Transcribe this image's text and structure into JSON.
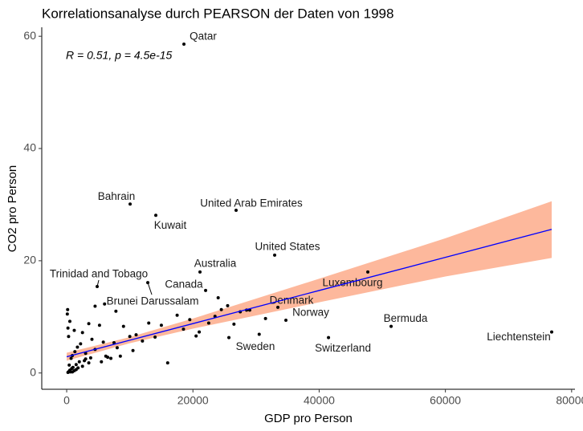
{
  "chart_data": {
    "type": "scatter",
    "title": "Korrelationsanalyse durch PEARSON der Daten von 1998",
    "annotation": "R = 0.51, p = 4.5e-15",
    "x_label": "GDP pro Person",
    "y_label": "CO2 pro Person",
    "xlim": [
      -3950,
      80530
    ],
    "ylim": [
      -2.9,
      61.6
    ],
    "xticks": [
      0,
      20000,
      40000,
      60000,
      80000
    ],
    "yticks": [
      0,
      20,
      40,
      60
    ],
    "point_color": "#000000",
    "labeled": [
      {
        "name": "Qatar",
        "x": 18575,
        "y": 58.6
      },
      {
        "name": "Bahrain",
        "x": 10050,
        "y": 30.1
      },
      {
        "name": "Kuwait",
        "x": 14120,
        "y": 28.1
      },
      {
        "name": "United Arab Emirates",
        "x": 26840,
        "y": 29.0
      },
      {
        "name": "United States",
        "x": 32950,
        "y": 21.0
      },
      {
        "name": "Australia",
        "x": 21120,
        "y": 18.0
      },
      {
        "name": "Trinidad and Tobago",
        "x": 4830,
        "y": 15.4
      },
      {
        "name": "Brunei Darussalam",
        "x": 12850,
        "y": 16.1
      },
      {
        "name": "Canada",
        "x": 22010,
        "y": 14.7
      },
      {
        "name": "Luxembourg",
        "x": 47710,
        "y": 18.0
      },
      {
        "name": "Denmark",
        "x": 33460,
        "y": 11.7
      },
      {
        "name": "Norway",
        "x": 34730,
        "y": 9.4
      },
      {
        "name": "Sweden",
        "x": 25700,
        "y": 6.3
      },
      {
        "name": "Switzerland",
        "x": 41480,
        "y": 6.3
      },
      {
        "name": "Bermuda",
        "x": 51400,
        "y": 8.3
      },
      {
        "name": "Liechtenstein",
        "x": 76840,
        "y": 7.3
      }
    ],
    "points": {
      "x": [
        200,
        300,
        400,
        500,
        600,
        800,
        1000,
        1200,
        1500,
        1800,
        2000,
        2500,
        3000,
        3500,
        400,
        700,
        900,
        1300,
        1700,
        2200,
        300,
        200,
        100,
        150,
        500,
        1200,
        2500,
        3500,
        4000,
        4500,
        5200,
        5800,
        6200,
        7000,
        7500,
        8000,
        8500,
        9000,
        10000,
        10500,
        11000,
        12000,
        13000,
        14000,
        15000,
        16000,
        4500,
        6000,
        7800,
        19500,
        20500,
        21000,
        22500,
        23500,
        24500,
        25500,
        26500,
        27500,
        28500,
        30500,
        31500,
        24000,
        29000,
        18500,
        17500,
        3000,
        5500,
        2800,
        1500,
        900,
        6500,
        3800
      ],
      "y": [
        0.1,
        0.2,
        0.3,
        0.5,
        0.2,
        0.8,
        1.0,
        0.4,
        1.5,
        0.9,
        2.0,
        1.2,
        2.5,
        1.8,
        1.4,
        2.6,
        3.1,
        3.8,
        4.6,
        5.2,
        6.5,
        8.0,
        10.5,
        11.3,
        9.2,
        7.6,
        7.2,
        8.8,
        6.0,
        4.2,
        8.5,
        5.5,
        3.0,
        2.6,
        5.4,
        4.5,
        3.0,
        8.3,
        6.5,
        4.0,
        6.8,
        5.7,
        8.9,
        6.4,
        8.5,
        1.8,
        11.9,
        12.3,
        11.0,
        9.5,
        6.6,
        7.3,
        8.9,
        10.1,
        11.3,
        12.0,
        8.7,
        10.9,
        11.2,
        6.9,
        9.7,
        13.4,
        11.2,
        7.8,
        10.3,
        3.5,
        2.0,
        2.2,
        0.6,
        0.2,
        2.8,
        2.7
      ]
    },
    "fit": {
      "color": "#0000ff",
      "band_color": "#fdb89c",
      "x": [
        0,
        10000,
        20000,
        40000,
        60000,
        76840
      ],
      "y": [
        2.9,
        5.85,
        8.8,
        14.7,
        20.6,
        25.6
      ],
      "lower": [
        2.2,
        5.3,
        7.9,
        12.6,
        17.2,
        20.5
      ],
      "upper": [
        3.6,
        6.4,
        9.7,
        16.8,
        24.0,
        30.6
      ]
    }
  }
}
